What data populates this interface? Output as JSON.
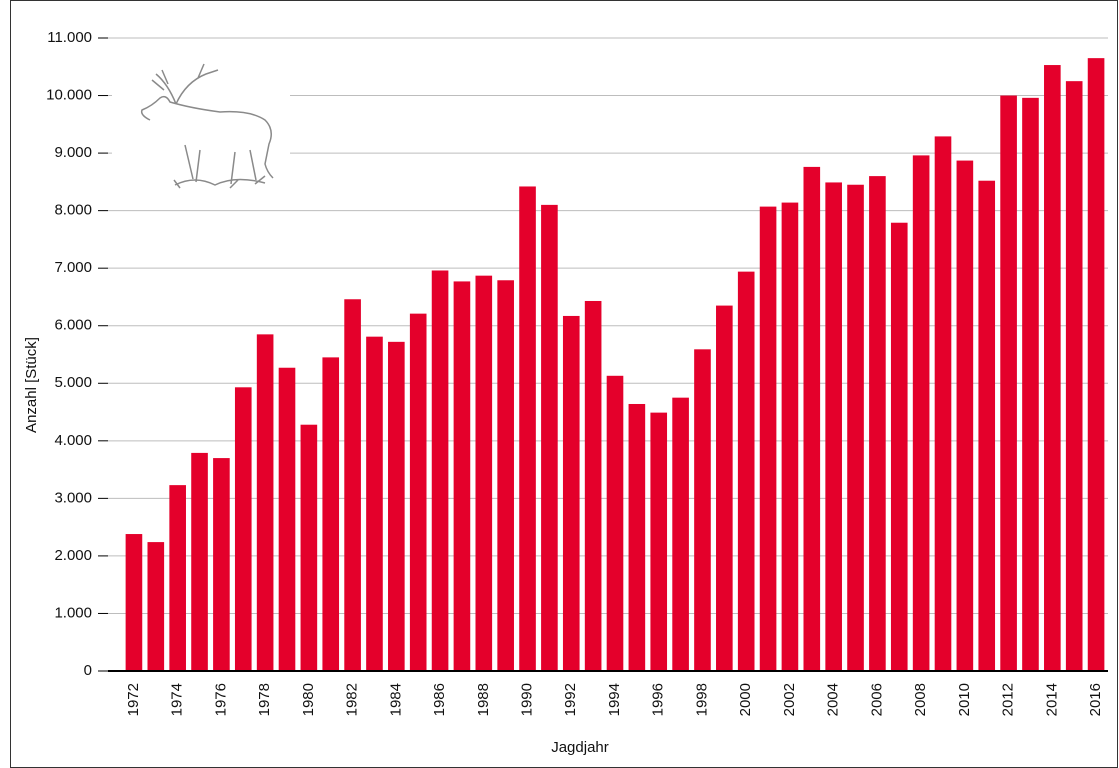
{
  "chart_data": {
    "type": "bar",
    "y_label": "Anzahl [Stück]",
    "x_label": "Jagdjahr",
    "categories": [
      "1972",
      null,
      "1974",
      null,
      "1976",
      null,
      "1978",
      null,
      "1980",
      null,
      "1982",
      null,
      "1984",
      null,
      "1986",
      null,
      "1988",
      null,
      "1990",
      null,
      "1992",
      null,
      "1994",
      null,
      "1996",
      null,
      "1998",
      null,
      "2000",
      null,
      "2002",
      null,
      "2004",
      null,
      "2006",
      null,
      "2008",
      null,
      "2010",
      null,
      "2012",
      null,
      "2014",
      null,
      "2016"
    ],
    "values": [
      2380,
      2240,
      3230,
      3790,
      3700,
      4930,
      5850,
      5270,
      4280,
      5450,
      6460,
      5810,
      5720,
      6210,
      6960,
      6770,
      6870,
      6790,
      8420,
      8100,
      6170,
      6430,
      5130,
      4640,
      4490,
      4750,
      5590,
      6350,
      6940,
      8070,
      8140,
      8760,
      8490,
      8450,
      8600,
      7790,
      8960,
      9290,
      8870,
      8520,
      10000,
      9960,
      10530,
      10250,
      10650
    ],
    "color": "#e4002b",
    "ylim": [
      0,
      11000
    ],
    "yticks": [
      0,
      {
        "value": 1000,
        "label": "1.000"
      },
      {
        "value": 2000,
        "label": "2.000"
      },
      {
        "value": 3000,
        "label": "3.000"
      },
      {
        "value": 4000,
        "label": "4.000"
      },
      {
        "value": 5000,
        "label": "5.000"
      },
      {
        "value": 6000,
        "label": "6.000"
      },
      {
        "value": 7000,
        "label": "7.000"
      },
      {
        "value": 8000,
        "label": "8.000"
      },
      {
        "value": 9000,
        "label": "9.000"
      },
      {
        "value": 10000,
        "label": "10.000"
      },
      {
        "value": 11000,
        "label": "11.000"
      }
    ],
    "grid": true
  }
}
